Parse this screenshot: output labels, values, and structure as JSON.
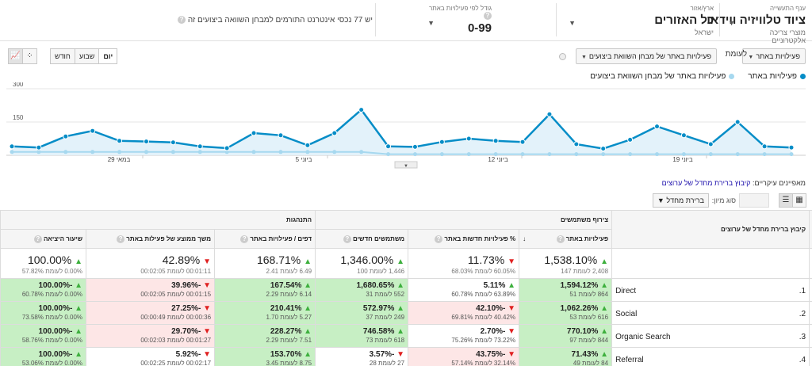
{
  "benchmark": {
    "industry": {
      "label": "ענף התעשייה",
      "value": "ציוד טלוויזיה ווידאו",
      "sub": "מוצרי צריכה אלקטרוניים"
    },
    "region": {
      "label": "ארץ/אזור",
      "value": "כל האזורים",
      "sub": "ישראל"
    },
    "size": {
      "label": "גודל לפי פעילויות באתר",
      "value": "0-99"
    },
    "info": "יש 77 נכסי אינטרנט התורמים למבחן השוואה ביצועים זה"
  },
  "controls": {
    "metric1": "פעילויות באתר",
    "vs": "לעומת",
    "metric2": "פעילויות באתר של מבחן השוואת ביצועים",
    "timeframe": [
      "יום",
      "שבוע",
      "חודש"
    ],
    "timeframe_active": "יום"
  },
  "legend": {
    "s1": "פעילויות באתר",
    "s2": "פעילויות באתר של מבחן השוואת ביצועים",
    "s1_color": "#058dc7",
    "s2_color": "#a6d8ef"
  },
  "chart_data": {
    "type": "area",
    "y_ticks": [
      "300",
      "150"
    ],
    "ylim": [
      0,
      300
    ],
    "x_labels": [
      "במאי 29",
      "ביוני 5",
      "ביוני 12",
      "ביוני 19"
    ],
    "series": [
      {
        "name": "פעילויות באתר",
        "values": [
          40,
          35,
          85,
          110,
          65,
          62,
          58,
          40,
          32,
          100,
          90,
          45,
          100,
          205,
          40,
          38,
          60,
          75,
          65,
          60,
          185,
          50,
          30,
          70,
          130,
          90,
          50,
          150,
          40,
          35
        ]
      },
      {
        "name": "פעילויות באתר של מבחן השוואת ביצועים",
        "values": [
          15,
          15,
          15,
          15,
          15,
          15,
          15,
          15,
          15,
          15,
          15,
          15,
          15,
          15,
          5,
          5,
          5,
          5,
          5,
          5,
          5,
          5,
          5,
          5,
          5,
          5,
          5,
          5,
          5,
          5
        ]
      }
    ]
  },
  "table": {
    "primary_dim_label": "מאפיינים עיקריים:",
    "primary_dim_value": "קיבוץ ברירת מחדל של ערוצים",
    "sort_label": "סוג מיון:",
    "secondary_dim": "ברירת מחדל",
    "groups": {
      "acq": "צירוף משתמשים",
      "behavior": "התנהגות"
    },
    "dim_header": "קיבוץ ברירת מחדל של ערוצים",
    "columns": [
      "פעילויות באתר",
      "% פעילויות חדשות באתר",
      "משתמשים חדשים",
      "דפים / פעילויות באתר",
      "משך ממוצע של פעילות באתר",
      "שיעור היציאה"
    ],
    "totals": [
      {
        "big": "1,538.10%",
        "small": "2,408 לעומת 147",
        "dir": "up"
      },
      {
        "big": "11.73%",
        "small": "60.05% לעומת 68.03%",
        "dir": "dn"
      },
      {
        "big": "1,346.00%",
        "small": "1,446 לעומת 100",
        "dir": "up"
      },
      {
        "big": "168.71%",
        "small": "6.49 לעומת 2.41",
        "dir": "up"
      },
      {
        "big": "42.89%",
        "small": "00:01:11 לעומת 00:02:05",
        "dir": "dn"
      },
      {
        "big": "100.00%",
        "small": "0.00% לעומת 57.82%",
        "dir": "up"
      }
    ],
    "rows": [
      {
        "num": "1.",
        "label": "Direct",
        "cells": [
          {
            "top": "1,594.12%",
            "bot": "864 לעומת 51",
            "dir": "up",
            "c": "g"
          },
          {
            "top": "5.11%",
            "bot": "63.89% לעומת 60.78%",
            "dir": "up",
            "c": "w"
          },
          {
            "top": "1,680.65%",
            "bot": "552 לעומת 31",
            "dir": "up",
            "c": "g"
          },
          {
            "top": "167.54%",
            "bot": "6.14 לעומת 2.29",
            "dir": "up",
            "c": "g"
          },
          {
            "top": "-39.96%",
            "bot": "00:01:15 לעומת 00:02:05",
            "dir": "dn",
            "c": "r"
          },
          {
            "top": "-100.00%",
            "bot": "0.00% לעומת 60.78%",
            "dir": "up",
            "c": "g"
          }
        ]
      },
      {
        "num": "2.",
        "label": "Social",
        "cells": [
          {
            "top": "1,062.26%",
            "bot": "616 לעומת 53",
            "dir": "up",
            "c": "g"
          },
          {
            "top": "-42.10%",
            "bot": "40.42% לעומת 69.81%",
            "dir": "dn",
            "c": "r"
          },
          {
            "top": "572.97%",
            "bot": "249 לעומת 37",
            "dir": "up",
            "c": "g"
          },
          {
            "top": "210.41%",
            "bot": "5.27 לעומת 1.70",
            "dir": "up",
            "c": "g"
          },
          {
            "top": "-27.25%",
            "bot": "00:00:36 לעומת 00:00:49",
            "dir": "dn",
            "c": "r"
          },
          {
            "top": "-100.00%",
            "bot": "0.00% לעומת 73.58%",
            "dir": "up",
            "c": "g"
          }
        ]
      },
      {
        "num": "3.",
        "label": "Organic Search",
        "cells": [
          {
            "top": "770.10%",
            "bot": "844 לעומת 97",
            "dir": "up",
            "c": "g"
          },
          {
            "top": "-2.70%",
            "bot": "73.22% לעומת 75.26%",
            "dir": "dn",
            "c": "w"
          },
          {
            "top": "746.58%",
            "bot": "618 לעומת 73",
            "dir": "up",
            "c": "g"
          },
          {
            "top": "228.27%",
            "bot": "7.51 לעומת 2.29",
            "dir": "up",
            "c": "g"
          },
          {
            "top": "-29.70%",
            "bot": "00:01:27 לעומת 00:02:03",
            "dir": "dn",
            "c": "r"
          },
          {
            "top": "-100.00%",
            "bot": "0.00% לעומת 58.76%",
            "dir": "up",
            "c": "g"
          }
        ]
      },
      {
        "num": "4.",
        "label": "Referral",
        "cells": [
          {
            "top": "71.43%",
            "bot": "84 לעומת 49",
            "dir": "up",
            "c": "g"
          },
          {
            "top": "-43.75%",
            "bot": "32.14% לעומת 57.14%",
            "dir": "dn",
            "c": "r"
          },
          {
            "top": "-3.57%",
            "bot": "27 לעומת 28",
            "dir": "dn",
            "c": "w"
          },
          {
            "top": "153.70%",
            "bot": "8.75 לעומת 3.45",
            "dir": "up",
            "c": "g"
          },
          {
            "top": "-5.92%",
            "bot": "00:02:17 לעומת 00:02:25",
            "dir": "dn",
            "c": "w"
          },
          {
            "top": "-100.00%",
            "bot": "0.00% לעומת 53.06%",
            "dir": "up",
            "c": "g"
          }
        ]
      }
    ]
  }
}
